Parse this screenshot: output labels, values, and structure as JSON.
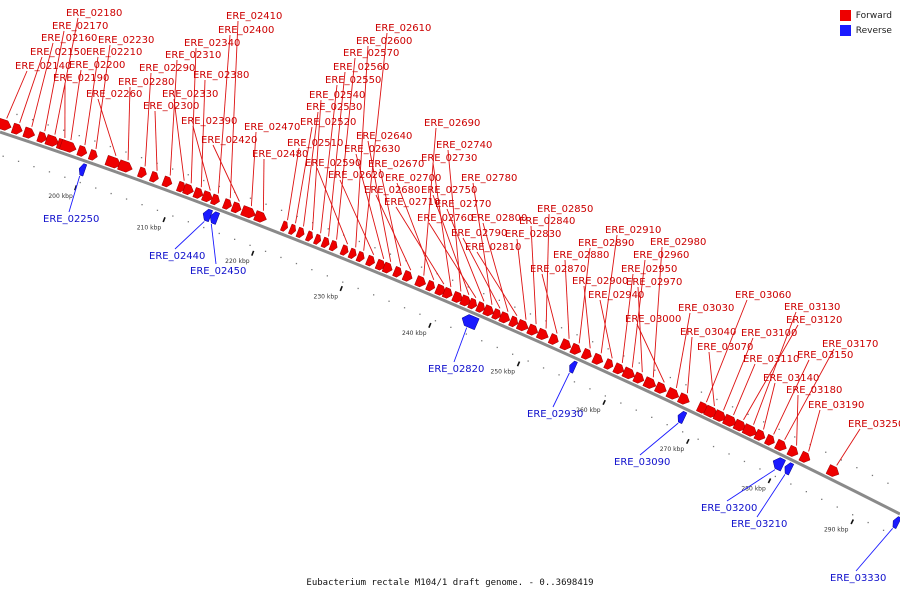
{
  "caption": "Eubacterium rectale M104/1 draft genome. - 0..3698419",
  "legend": [
    {
      "label": "Forward",
      "color": "#ee0000"
    },
    {
      "label": "Reverse",
      "color": "#1a1aff"
    }
  ],
  "colors": {
    "forward": "#ee0000",
    "reverse": "#1a1aff",
    "backbone": "#888888"
  },
  "ticks": [
    "200 kbp",
    "210 kbp",
    "220 kbp",
    "230 kbp",
    "240 kbp",
    "250 kbp",
    "260 kbp",
    "270 kbp",
    "280 kbp",
    "290 kbp"
  ],
  "forward_genes": [
    "ERE_02140",
    "ERE_02150",
    "ERE_02160",
    "ERE_02170",
    "ERE_02180",
    "ERE_02190",
    "ERE_02200",
    "ERE_02210",
    "ERE_02230",
    "ERE_02260",
    "ERE_02280",
    "ERE_02290",
    "ERE_02300",
    "ERE_02310",
    "ERE_02330",
    "ERE_02340",
    "ERE_02380",
    "ERE_02390",
    "ERE_02400",
    "ERE_02410",
    "ERE_02420",
    "ERE_02470",
    "ERE_02480",
    "ERE_02510",
    "ERE_02520",
    "ERE_02530",
    "ERE_02540",
    "ERE_02550",
    "ERE_02560",
    "ERE_02570",
    "ERE_02590",
    "ERE_02600",
    "ERE_02610",
    "ERE_02620",
    "ERE_02630",
    "ERE_02640",
    "ERE_02670",
    "ERE_02680",
    "ERE_02690",
    "ERE_02700",
    "ERE_02710",
    "ERE_02730",
    "ERE_02740",
    "ERE_02750",
    "ERE_02760",
    "ERE_02770",
    "ERE_02780",
    "ERE_02790",
    "ERE_02800",
    "ERE_02810",
    "ERE_02830",
    "ERE_02840",
    "ERE_02850",
    "ERE_02870",
    "ERE_02880",
    "ERE_02890",
    "ERE_02900",
    "ERE_02910",
    "ERE_02940",
    "ERE_02950",
    "ERE_02960",
    "ERE_02970",
    "ERE_02980",
    "ERE_03000",
    "ERE_03030",
    "ERE_03040",
    "ERE_03060",
    "ERE_03070",
    "ERE_03100",
    "ERE_03110",
    "ERE_03120",
    "ERE_03130",
    "ERE_03140",
    "ERE_03150",
    "ERE_03170",
    "ERE_03180",
    "ERE_03190",
    "ERE_03250"
  ],
  "reverse_genes": [
    "ERE_02250",
    "ERE_02440",
    "ERE_02450",
    "ERE_02820",
    "ERE_02930",
    "ERE_03090",
    "ERE_03200",
    "ERE_03210",
    "ERE_03330"
  ]
}
